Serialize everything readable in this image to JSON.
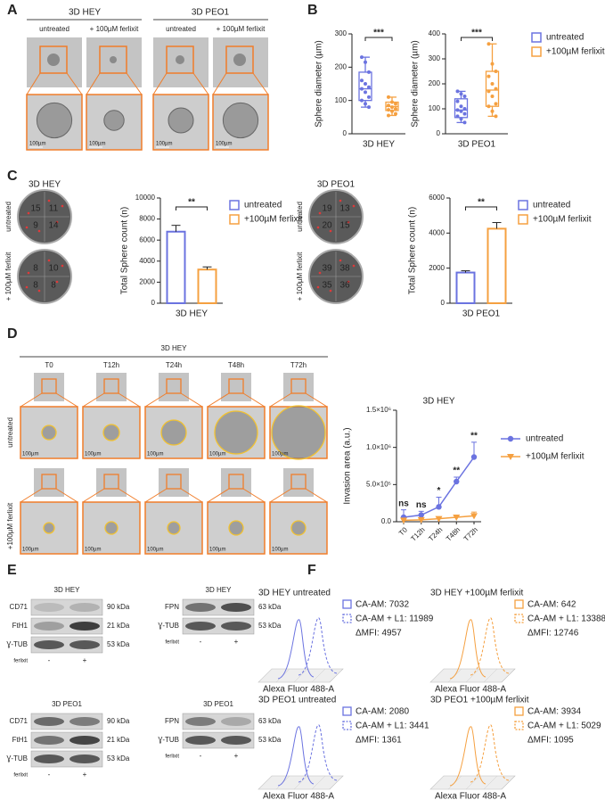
{
  "figure": {
    "panel_labels": [
      "A",
      "B",
      "C",
      "D",
      "E",
      "F"
    ],
    "a": {
      "groups": [
        "3D HEY",
        "3D PEO1"
      ],
      "conditions": [
        "untreated",
        "+ 100µM ferlixit"
      ],
      "scale_bar": "100µm"
    },
    "c": {
      "row_labels": [
        "untreated",
        "+ 100µM ferlixit"
      ],
      "discs": [
        {
          "title": "3D HEY",
          "counts": [
            [
              "15",
              "11",
              "9",
              "14"
            ],
            [
              "8",
              "10",
              "8",
              "8"
            ]
          ]
        },
        {
          "title": "3D PEO1",
          "counts": [
            [
              "19",
              "13",
              "20",
              "15"
            ],
            [
              "39",
              "38",
              "35",
              "36"
            ]
          ]
        }
      ]
    },
    "d": {
      "title": "3D HEY",
      "row_labels": [
        "untreated",
        "+100µM ferlixit"
      ],
      "scale_bar": "100µm"
    },
    "e": {
      "treatment": "ferlixit",
      "lanes": [
        "-",
        "+"
      ],
      "blots": [
        {
          "title": "3D HEY",
          "rows": [
            {
              "protein": "CD71",
              "size": "90 kDa"
            },
            {
              "protein": "FtH1",
              "size": "21 kDa"
            },
            {
              "protein": "Ɣ-TUB",
              "size": "53 kDa"
            }
          ]
        },
        {
          "title": "3D HEY",
          "rows": [
            {
              "protein": "FPN",
              "size": "63 kDa"
            },
            {
              "protein": "Ɣ-TUB",
              "size": "53 kDa"
            }
          ]
        },
        {
          "title": "3D PEO1",
          "rows": [
            {
              "protein": "CD71",
              "size": "90 kDa"
            },
            {
              "protein": "FtH1",
              "size": "21 kDa"
            },
            {
              "protein": "Ɣ-TUB",
              "size": "53 kDa"
            }
          ]
        },
        {
          "title": "3D PEO1",
          "rows": [
            {
              "protein": "FPN",
              "size": "63 kDa"
            },
            {
              "protein": "Ɣ-TUB",
              "size": "53 kDa"
            }
          ]
        }
      ]
    },
    "f": {
      "axis_label": "Alexa Fluor 488-A",
      "plots": [
        {
          "title": "3D HEY untreated",
          "color": "#6b73e0",
          "entries": [
            "CA-AM: 7032",
            "CA-AM + L1: 11989"
          ],
          "delta": "ΔMFI: 4957"
        },
        {
          "title": "3D HEY +100µM ferlixit",
          "color": "#f5a040",
          "entries": [
            "CA-AM: 642",
            "CA-AM + L1: 13388"
          ],
          "delta": "ΔMFI: 12746"
        },
        {
          "title": "3D PEO1 untreated",
          "color": "#6b73e0",
          "entries": [
            "CA-AM: 2080",
            "CA-AM + L1: 3441"
          ],
          "delta": "ΔMFI: 1361"
        },
        {
          "title": "3D PEO1 +100µM ferlixit",
          "color": "#f5a040",
          "entries": [
            "CA-AM: 3934",
            "CA-AM + L1: 5029"
          ],
          "delta": "ΔMFI: 1095"
        }
      ]
    }
  },
  "chart_data": [
    {
      "type": "box",
      "y_label": "Sphere diameter (µm)",
      "category": "3D HEY",
      "annotation": "***",
      "ylim": [
        0,
        300
      ],
      "yticks": [
        0,
        100,
        200,
        300
      ],
      "series": [
        {
          "color": "#6b73e0",
          "min": 80,
          "q1": 100,
          "median": 135,
          "q3": 185,
          "max": 230,
          "points": [
            230,
            215,
            185,
            160,
            150,
            140,
            135,
            125,
            110,
            100,
            90,
            80
          ]
        },
        {
          "color": "#f5a040",
          "min": 55,
          "q1": 70,
          "median": 82,
          "q3": 95,
          "max": 110,
          "points": [
            110,
            95,
            90,
            85,
            80,
            75,
            72,
            68,
            60,
            55
          ]
        }
      ]
    },
    {
      "type": "box",
      "y_label": "Sphere diameter (µm)",
      "category": "3D PEO1",
      "annotation": "***",
      "ylim": [
        0,
        400
      ],
      "yticks": [
        0,
        100,
        200,
        300,
        400
      ],
      "series": [
        {
          "name": "untreated",
          "color": "#6b73e0",
          "min": 45,
          "q1": 65,
          "median": 95,
          "q3": 140,
          "max": 170,
          "points": [
            170,
            160,
            150,
            130,
            110,
            100,
            95,
            90,
            80,
            70,
            60,
            45
          ]
        },
        {
          "name": "+100µM ferlixit",
          "color": "#f5a040",
          "min": 70,
          "q1": 110,
          "median": 175,
          "q3": 250,
          "max": 360,
          "points": [
            360,
            280,
            250,
            230,
            200,
            180,
            170,
            150,
            120,
            110,
            90,
            70
          ]
        }
      ]
    },
    {
      "type": "bar",
      "y_label": "Total Sphere count (n)",
      "category": "3D HEY",
      "annotation": "**",
      "ylim": [
        0,
        10000
      ],
      "yticks": [
        0,
        2000,
        4000,
        6000,
        8000,
        10000
      ],
      "series": [
        {
          "name": "untreated",
          "color": "#6b73e0",
          "values": [
            6800
          ],
          "errors": [
            600
          ]
        },
        {
          "name": "+100µM ferlixit",
          "color": "#f5a040",
          "values": [
            3200
          ],
          "errors": [
            250
          ]
        }
      ]
    },
    {
      "type": "bar",
      "y_label": "Total Sphere count (n)",
      "category": "3D PEO1",
      "annotation": "**",
      "ylim": [
        0,
        6000
      ],
      "yticks": [
        0,
        2000,
        4000,
        6000
      ],
      "series": [
        {
          "name": "untreated",
          "color": "#6b73e0",
          "values": [
            1750
          ],
          "errors": [
            100
          ]
        },
        {
          "name": "+100µM ferlixit",
          "color": "#f5a040",
          "values": [
            4250
          ],
          "errors": [
            350
          ]
        }
      ]
    },
    {
      "type": "line",
      "title": "3D HEY",
      "y_label": "Invasion area (a.u.)",
      "categories": [
        "T0",
        "T12h",
        "T24h",
        "T48h",
        "T72h"
      ],
      "ylim": [
        0,
        1500000
      ],
      "yticks": [
        {
          "value": 0,
          "label": "0.0"
        },
        {
          "value": 500000,
          "label": "5.0×10⁵"
        },
        {
          "value": 1000000,
          "label": "1.0×10⁶"
        },
        {
          "value": 1500000,
          "label": "1.5×10⁶"
        }
      ],
      "annotations": [
        "ns",
        "ns",
        "*",
        "**",
        "**"
      ],
      "series": [
        {
          "name": "untreated",
          "color": "#6b73e0",
          "marker": "circle",
          "values": [
            60000,
            90000,
            200000,
            540000,
            870000
          ],
          "errors": [
            100000,
            50000,
            130000,
            60000,
            200000
          ]
        },
        {
          "name": "+100µM ferlixit",
          "color": "#f5a040",
          "marker": "triangle",
          "values": [
            20000,
            25000,
            40000,
            60000,
            80000
          ],
          "errors": [
            15000,
            10000,
            15000,
            20000,
            50000
          ]
        }
      ]
    }
  ]
}
